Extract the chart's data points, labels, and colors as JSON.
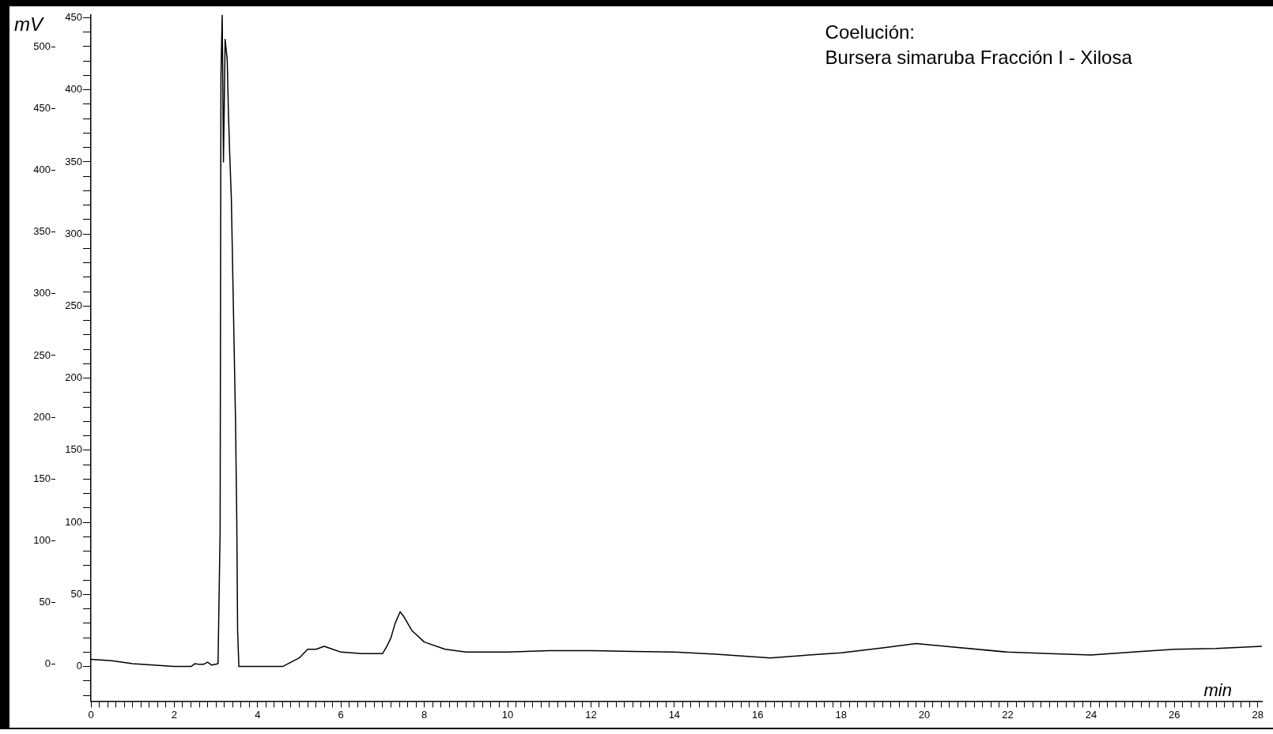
{
  "chart_data": {
    "type": "line",
    "y2label": "mV",
    "xlabel": "min",
    "annotations": [
      "Coelución:",
      "Bursera simaruba Fracción I - Xilosa"
    ],
    "series": [
      {
        "color": "#000000",
        "x": [
          0,
          0.5,
          1,
          1.5,
          2,
          2.4,
          2.5,
          2.6,
          2.7,
          2.8,
          2.9,
          3.05,
          3.1,
          3.12,
          3.15,
          3.18,
          3.2,
          3.22,
          3.27,
          3.3,
          3.33,
          3.37,
          3.42,
          3.47,
          3.5,
          3.52,
          3.55,
          4.6,
          4.8,
          5.0,
          5.2,
          5.4,
          5.6,
          5.8,
          6.0,
          6.5,
          7.0,
          7.1,
          7.2,
          7.3,
          7.42,
          7.5,
          7.7,
          8.0,
          8.5,
          9,
          10,
          11,
          12,
          13,
          14,
          15,
          16.3,
          17,
          18,
          19,
          19.8,
          20.5,
          22,
          23,
          24,
          25,
          26,
          27,
          28.1
        ],
        "values": [
          5,
          4,
          2,
          1,
          0,
          0,
          2,
          1.5,
          1.5,
          3,
          1,
          2,
          94,
          410,
          452,
          350,
          390,
          435,
          421,
          384,
          356,
          324,
          247,
          170,
          101,
          25,
          0,
          0,
          3,
          6,
          12,
          12,
          14,
          12,
          10,
          9,
          9,
          14,
          20,
          30,
          38,
          35,
          25,
          17,
          12,
          10,
          10,
          11,
          11,
          10.5,
          10,
          8.5,
          6,
          7.5,
          9.5,
          13,
          16,
          14,
          10,
          9,
          8,
          10,
          12,
          12.5,
          14
        ]
      }
    ],
    "xlim": [
      0,
      28.1
    ],
    "xticks": [
      0,
      {
        "value": 0.2,
        "label": null
      },
      {
        "value": 0.4,
        "label": null
      },
      {
        "value": 0.6,
        "label": null
      },
      {
        "value": 0.8,
        "label": null
      },
      {
        "value": 1,
        "label": null
      },
      {
        "value": 1.2,
        "label": null
      },
      {
        "value": 1.4,
        "label": null
      },
      {
        "value": 1.6,
        "label": null
      },
      {
        "value": 1.8,
        "label": null
      },
      2,
      {
        "value": 2.2,
        "label": null
      },
      {
        "value": 2.4,
        "label": null
      },
      {
        "value": 2.6,
        "label": null
      },
      {
        "value": 2.8,
        "label": null
      },
      {
        "value": 3,
        "label": null
      },
      {
        "value": 3.2,
        "label": null
      },
      {
        "value": 3.4,
        "label": null
      },
      {
        "value": 3.6,
        "label": null
      },
      {
        "value": 3.8,
        "label": null
      },
      4,
      {
        "value": 4.2,
        "label": null
      },
      {
        "value": 4.4,
        "label": null
      },
      {
        "value": 4.6,
        "label": null
      },
      {
        "value": 4.8,
        "label": null
      },
      {
        "value": 5,
        "label": null
      },
      {
        "value": 5.2,
        "label": null
      },
      {
        "value": 5.4,
        "label": null
      },
      {
        "value": 5.6,
        "label": null
      },
      {
        "value": 5.8,
        "label": null
      },
      6,
      {
        "value": 6.2,
        "label": null
      },
      {
        "value": 6.4,
        "label": null
      },
      {
        "value": 6.6,
        "label": null
      },
      {
        "value": 6.8,
        "label": null
      },
      {
        "value": 7,
        "label": null
      },
      {
        "value": 7.2,
        "label": null
      },
      {
        "value": 7.4,
        "label": null
      },
      {
        "value": 7.6,
        "label": null
      },
      {
        "value": 7.8,
        "label": null
      },
      8,
      {
        "value": 8.2,
        "label": null
      },
      {
        "value": 8.4,
        "label": null
      },
      {
        "value": 8.6,
        "label": null
      },
      {
        "value": 8.8,
        "label": null
      },
      {
        "value": 9,
        "label": null
      },
      {
        "value": 9.2,
        "label": null
      },
      {
        "value": 9.4,
        "label": null
      },
      {
        "value": 9.6,
        "label": null
      },
      {
        "value": 9.8,
        "label": null
      },
      10,
      {
        "value": 10.2,
        "label": null
      },
      {
        "value": 10.4,
        "label": null
      },
      {
        "value": 10.6,
        "label": null
      },
      {
        "value": 10.8,
        "label": null
      },
      {
        "value": 11,
        "label": null
      },
      {
        "value": 11.2,
        "label": null
      },
      {
        "value": 11.4,
        "label": null
      },
      {
        "value": 11.6,
        "label": null
      },
      {
        "value": 11.8,
        "label": null
      },
      12,
      {
        "value": 12.2,
        "label": null
      },
      {
        "value": 12.4,
        "label": null
      },
      {
        "value": 12.6,
        "label": null
      },
      {
        "value": 12.8,
        "label": null
      },
      {
        "value": 13,
        "label": null
      },
      {
        "value": 13.2,
        "label": null
      },
      {
        "value": 13.4,
        "label": null
      },
      {
        "value": 13.6,
        "label": null
      },
      {
        "value": 13.8,
        "label": null
      },
      14,
      {
        "value": 14.2,
        "label": null
      },
      {
        "value": 14.4,
        "label": null
      },
      {
        "value": 14.6,
        "label": null
      },
      {
        "value": 14.8,
        "label": null
      },
      {
        "value": 15,
        "label": null
      },
      {
        "value": 15.2,
        "label": null
      },
      {
        "value": 15.4,
        "label": null
      },
      {
        "value": 15.6,
        "label": null
      },
      {
        "value": 15.8,
        "label": null
      },
      16,
      {
        "value": 16.2,
        "label": null
      },
      {
        "value": 16.4,
        "label": null
      },
      {
        "value": 16.6,
        "label": null
      },
      {
        "value": 16.8,
        "label": null
      },
      {
        "value": 17,
        "label": null
      },
      {
        "value": 17.2,
        "label": null
      },
      {
        "value": 17.4,
        "label": null
      },
      {
        "value": 17.6,
        "label": null
      },
      {
        "value": 17.8,
        "label": null
      },
      18,
      {
        "value": 18.2,
        "label": null
      },
      {
        "value": 18.4,
        "label": null
      },
      {
        "value": 18.6,
        "label": null
      },
      {
        "value": 18.8,
        "label": null
      },
      {
        "value": 19,
        "label": null
      },
      {
        "value": 19.2,
        "label": null
      },
      {
        "value": 19.4,
        "label": null
      },
      {
        "value": 19.6,
        "label": null
      },
      {
        "value": 19.8,
        "label": null
      },
      20,
      {
        "value": 20.2,
        "label": null
      },
      {
        "value": 20.4,
        "label": null
      },
      {
        "value": 20.6,
        "label": null
      },
      {
        "value": 20.8,
        "label": null
      },
      {
        "value": 21,
        "label": null
      },
      {
        "value": 21.2,
        "label": null
      },
      {
        "value": 21.4,
        "label": null
      },
      {
        "value": 21.6,
        "label": null
      },
      {
        "value": 21.8,
        "label": null
      },
      22,
      {
        "value": 22.2,
        "label": null
      },
      {
        "value": 22.4,
        "label": null
      },
      {
        "value": 22.6,
        "label": null
      },
      {
        "value": 22.8,
        "label": null
      },
      {
        "value": 23,
        "label": null
      },
      {
        "value": 23.2,
        "label": null
      },
      {
        "value": 23.4,
        "label": null
      },
      {
        "value": 23.6,
        "label": null
      },
      {
        "value": 23.8,
        "label": null
      },
      24,
      {
        "value": 24.2,
        "label": null
      },
      {
        "value": 24.4,
        "label": null
      },
      {
        "value": 24.6,
        "label": null
      },
      {
        "value": 24.8,
        "label": null
      },
      {
        "value": 25,
        "label": null
      },
      {
        "value": 25.2,
        "label": null
      },
      {
        "value": 25.4,
        "label": null
      },
      {
        "value": 25.6,
        "label": null
      },
      {
        "value": 25.8,
        "label": null
      },
      26,
      {
        "value": 26.2,
        "label": null
      },
      {
        "value": 26.4,
        "label": null
      },
      {
        "value": 26.6,
        "label": null
      },
      {
        "value": 26.8,
        "label": null
      },
      {
        "value": 27,
        "label": null
      },
      {
        "value": 27.2,
        "label": null
      },
      {
        "value": 27.4,
        "label": null
      },
      {
        "value": 27.6,
        "label": null
      },
      {
        "value": 27.8,
        "label": null
      },
      28
    ],
    "ylim": [
      -24,
      452
    ],
    "yticks": [
      {
        "value": -20,
        "label": null
      },
      {
        "value": -10,
        "label": null
      },
      0,
      {
        "value": 10,
        "label": null
      },
      {
        "value": 20,
        "label": null
      },
      {
        "value": 30,
        "label": null
      },
      {
        "value": 40,
        "label": null
      },
      50,
      {
        "value": 60,
        "label": null
      },
      {
        "value": 70,
        "label": null
      },
      {
        "value": 80,
        "label": null
      },
      {
        "value": 90,
        "label": null
      },
      100,
      {
        "value": 110,
        "label": null
      },
      {
        "value": 120,
        "label": null
      },
      {
        "value": 130,
        "label": null
      },
      {
        "value": 140,
        "label": null
      },
      150,
      {
        "value": 160,
        "label": null
      },
      {
        "value": 170,
        "label": null
      },
      {
        "value": 180,
        "label": null
      },
      {
        "value": 190,
        "label": null
      },
      200,
      {
        "value": 210,
        "label": null
      },
      {
        "value": 220,
        "label": null
      },
      {
        "value": 230,
        "label": null
      },
      {
        "value": 240,
        "label": null
      },
      250,
      {
        "value": 260,
        "label": null
      },
      {
        "value": 270,
        "label": null
      },
      {
        "value": 280,
        "label": null
      },
      {
        "value": 290,
        "label": null
      },
      300,
      {
        "value": 310,
        "label": null
      },
      {
        "value": 320,
        "label": null
      },
      {
        "value": 330,
        "label": null
      },
      {
        "value": 340,
        "label": null
      },
      350,
      {
        "value": 360,
        "label": null
      },
      {
        "value": 370,
        "label": null
      },
      {
        "value": 380,
        "label": null
      },
      {
        "value": 390,
        "label": null
      },
      400,
      {
        "value": 410,
        "label": null
      },
      {
        "value": 420,
        "label": null
      },
      {
        "value": 430,
        "label": null
      },
      {
        "value": 440,
        "label": null
      },
      450
    ],
    "y2lim": [
      -30,
      526
    ],
    "y2ticks": [
      0,
      50,
      100,
      150,
      200,
      250,
      300,
      350,
      400,
      450,
      500
    ],
    "grid": false,
    "legend": false,
    "marker": "none",
    "line_style": "solid"
  }
}
